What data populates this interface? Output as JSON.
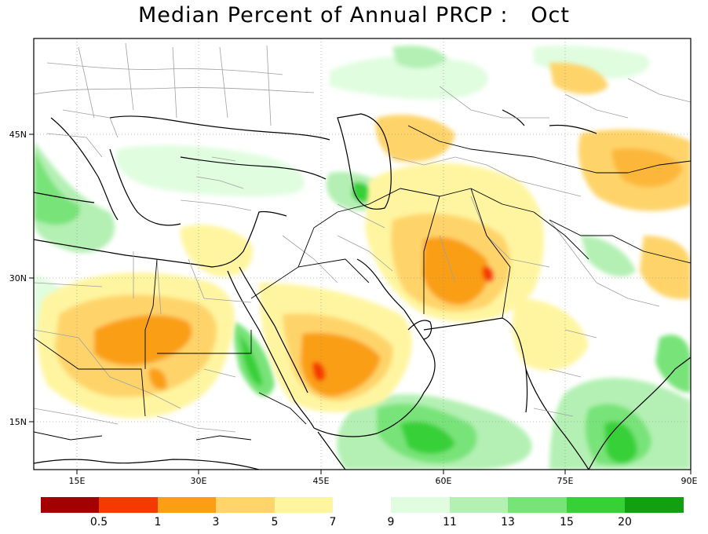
{
  "title": "Median Percent of Annual PRCP :   Oct",
  "map": {
    "x_ticks": [
      "15E",
      "30E",
      "45E",
      "60E",
      "75E",
      "90E"
    ],
    "y_ticks": [
      "45N",
      "30N",
      "15N"
    ],
    "colors": {
      "land": "#ffffff",
      "border_coast": "#000000",
      "border_admin": "#a0a0a0",
      "grid": "#888888"
    }
  },
  "legend": {
    "dry": {
      "colors": [
        "#a50000",
        "#f53a00",
        "#fa9e14",
        "#fed46b",
        "#fff5a0"
      ],
      "labels": [
        "0.5",
        "1",
        "3",
        "5",
        "7"
      ]
    },
    "wet": {
      "colors": [
        "#e0fde0",
        "#b4f0b4",
        "#78e378",
        "#37d037",
        "#12a012"
      ],
      "labels": [
        "9",
        "11",
        "13",
        "15",
        "20"
      ]
    }
  }
}
